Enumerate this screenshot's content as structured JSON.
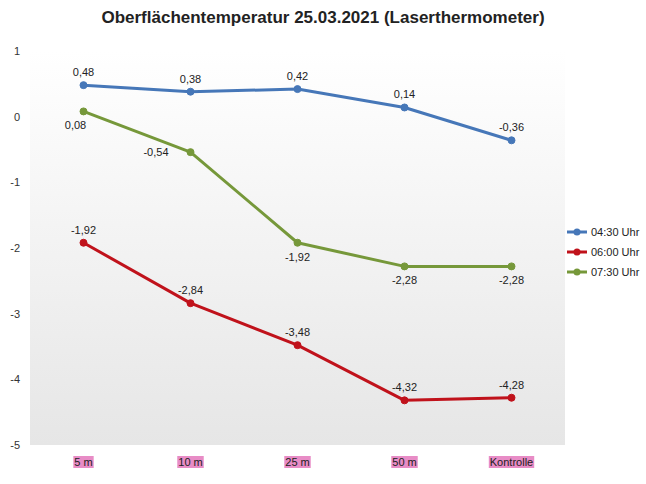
{
  "chart_data": {
    "type": "line",
    "title": "Oberflächentemperatur 25.03.2021 (Laserthermometer)",
    "categories": [
      "5 m",
      "10 m",
      "25 m",
      "50 m",
      "Kontrolle"
    ],
    "series": [
      {
        "name": "04:30 Uhr",
        "color": "#4677b8",
        "marker": "circle",
        "values": [
          0.48,
          0.38,
          0.42,
          0.14,
          -0.36
        ],
        "value_labels": [
          "0,48",
          "0,38",
          "0,42",
          "0,14",
          "-0,36"
        ]
      },
      {
        "name": "06:00 Uhr",
        "color": "#c0121b",
        "marker": "circle",
        "values": [
          -1.92,
          -2.84,
          -3.48,
          -4.32,
          -4.28
        ],
        "value_labels": [
          "-1,92",
          "-2,84",
          "-3,48",
          "-4,32",
          "-4,28"
        ]
      },
      {
        "name": "07:30 Uhr",
        "color": "#76983a",
        "marker": "circle",
        "values": [
          0.08,
          -0.54,
          -1.92,
          -2.28,
          -2.28
        ],
        "value_labels": [
          "0,08",
          "-0,54",
          "-1,92",
          "-2,28",
          "-2,28"
        ]
      }
    ],
    "ylim": [
      -5,
      1
    ],
    "yticks": [
      -5,
      -4,
      -3,
      -2,
      -1,
      0,
      1
    ],
    "grid": false,
    "legend": "right",
    "data_labels": true
  }
}
